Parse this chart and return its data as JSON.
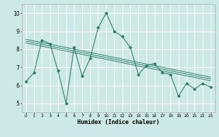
{
  "xlabel": "Humidex (Indice chaleur)",
  "ylabel": "",
  "bg_color": "#cce8e8",
  "grid_color": "#ffffff",
  "line_color": "#2e7d6e",
  "xlim": [
    -0.5,
    23.5
  ],
  "ylim": [
    4.5,
    10.5
  ],
  "xticks": [
    0,
    1,
    2,
    3,
    4,
    5,
    6,
    7,
    8,
    9,
    10,
    11,
    12,
    13,
    14,
    15,
    16,
    17,
    18,
    19,
    20,
    21,
    22,
    23
  ],
  "yticks": [
    5,
    6,
    7,
    8,
    9,
    10
  ],
  "main_x": [
    0,
    1,
    2,
    3,
    4,
    5,
    6,
    7,
    8,
    9,
    10,
    11,
    12,
    13,
    14,
    15,
    16,
    17,
    18,
    19,
    20,
    21,
    22,
    23
  ],
  "main_y": [
    6.2,
    6.7,
    8.5,
    8.3,
    6.8,
    5.0,
    8.1,
    6.5,
    7.5,
    9.2,
    10.0,
    9.0,
    8.7,
    8.1,
    6.6,
    7.1,
    7.2,
    6.7,
    6.6,
    5.4,
    6.1,
    5.8,
    6.1,
    5.9
  ],
  "trend1_x": [
    0,
    23
  ],
  "trend1_y": [
    8.55,
    6.45
  ],
  "trend2_x": [
    0,
    23
  ],
  "trend2_y": [
    8.45,
    6.35
  ],
  "trend3_x": [
    0,
    23
  ],
  "trend3_y": [
    8.35,
    6.25
  ]
}
